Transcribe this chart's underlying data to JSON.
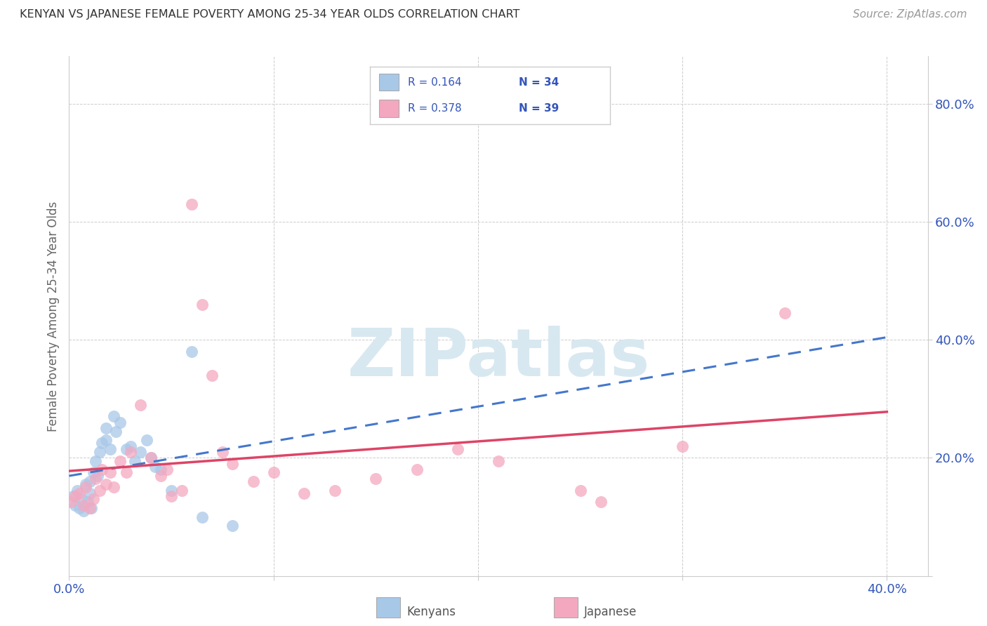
{
  "title": "KENYAN VS JAPANESE FEMALE POVERTY AMONG 25-34 YEAR OLDS CORRELATION CHART",
  "source": "Source: ZipAtlas.com",
  "ylabel_label": "Female Poverty Among 25-34 Year Olds",
  "xlim": [
    0.0,
    0.42
  ],
  "ylim": [
    0.0,
    0.88
  ],
  "xticks": [
    0.0,
    0.1,
    0.2,
    0.3,
    0.4
  ],
  "xtick_labels": [
    "0.0%",
    "",
    "",
    "",
    "40.0%"
  ],
  "yticks": [
    0.0,
    0.2,
    0.4,
    0.6,
    0.8
  ],
  "ytick_labels": [
    "",
    "20.0%",
    "40.0%",
    "60.0%",
    "80.0%"
  ],
  "kenyan_color": "#a8c8e8",
  "japanese_color": "#f4a8c0",
  "kenyan_line_color": "#4477cc",
  "japanese_line_color": "#dd4466",
  "background_color": "#ffffff",
  "grid_color": "#cccccc",
  "watermark_color": "#d8e8f0",
  "tick_color": "#3355bb",
  "kenyan_x": [
    0.002,
    0.003,
    0.004,
    0.005,
    0.006,
    0.007,
    0.008,
    0.009,
    0.01,
    0.01,
    0.011,
    0.012,
    0.013,
    0.014,
    0.015,
    0.016,
    0.018,
    0.018,
    0.02,
    0.022,
    0.023,
    0.025,
    0.028,
    0.03,
    0.032,
    0.035,
    0.038,
    0.04,
    0.042,
    0.045,
    0.05,
    0.06,
    0.065,
    0.08
  ],
  "kenyan_y": [
    0.135,
    0.12,
    0.145,
    0.115,
    0.13,
    0.11,
    0.155,
    0.125,
    0.14,
    0.16,
    0.115,
    0.175,
    0.195,
    0.17,
    0.21,
    0.225,
    0.25,
    0.23,
    0.215,
    0.27,
    0.245,
    0.26,
    0.215,
    0.22,
    0.195,
    0.21,
    0.23,
    0.2,
    0.185,
    0.18,
    0.145,
    0.38,
    0.1,
    0.085
  ],
  "japanese_x": [
    0.001,
    0.003,
    0.005,
    0.007,
    0.008,
    0.01,
    0.012,
    0.013,
    0.015,
    0.016,
    0.018,
    0.02,
    0.022,
    0.025,
    0.028,
    0.03,
    0.035,
    0.04,
    0.045,
    0.048,
    0.05,
    0.055,
    0.06,
    0.065,
    0.07,
    0.075,
    0.08,
    0.09,
    0.1,
    0.115,
    0.13,
    0.15,
    0.17,
    0.19,
    0.21,
    0.25,
    0.26,
    0.3,
    0.35
  ],
  "japanese_y": [
    0.125,
    0.135,
    0.14,
    0.12,
    0.15,
    0.115,
    0.13,
    0.165,
    0.145,
    0.18,
    0.155,
    0.175,
    0.15,
    0.195,
    0.175,
    0.21,
    0.29,
    0.2,
    0.17,
    0.18,
    0.135,
    0.145,
    0.63,
    0.46,
    0.34,
    0.21,
    0.19,
    0.16,
    0.175,
    0.14,
    0.145,
    0.165,
    0.18,
    0.215,
    0.195,
    0.145,
    0.125,
    0.22,
    0.445
  ],
  "legend_kenyan_r": "R = 0.164",
  "legend_kenyan_n": "N = 34",
  "legend_japanese_r": "R = 0.378",
  "legend_japanese_n": "N = 39",
  "bottom_legend_kenyans": "Kenyans",
  "bottom_legend_japanese": "Japanese"
}
